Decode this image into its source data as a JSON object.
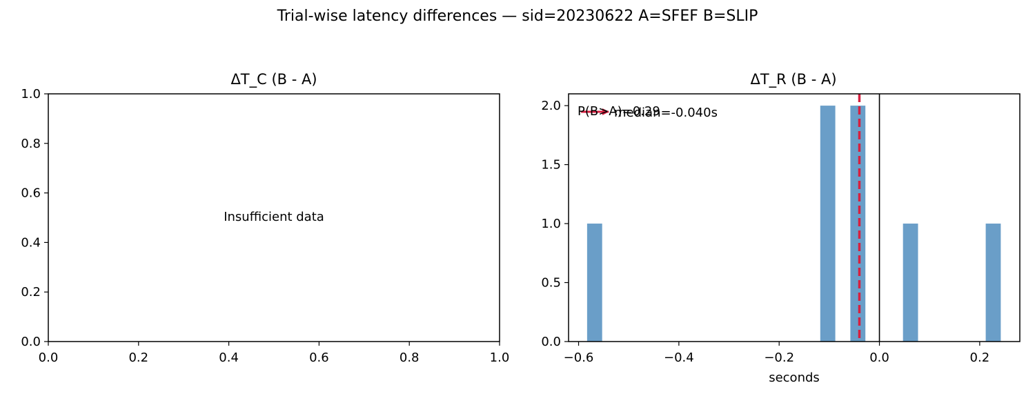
{
  "figure": {
    "suptitle": "Trial-wise latency differences — sid=20230622  A=SFEF  B=SLIP"
  },
  "colors": {
    "bar": "#6a9ec8",
    "median_line": "#d62040",
    "zero_line": "#000000",
    "axes": "#000000"
  },
  "chart_data": [
    {
      "type": "bar",
      "title": "ΔT_C (B - A)",
      "xlabel": "",
      "ylabel": "",
      "xlim": [
        0.0,
        1.0
      ],
      "ylim": [
        0.0,
        1.0
      ],
      "xticks": [
        "0.0",
        "0.2",
        "0.4",
        "0.6",
        "0.8",
        "1.0"
      ],
      "yticks": [
        "0.0",
        "0.2",
        "0.4",
        "0.6",
        "0.8",
        "1.0"
      ],
      "message": "Insufficient data",
      "bars": []
    },
    {
      "type": "bar",
      "title": "ΔT_R (B - A)",
      "xlabel": "seconds",
      "ylabel": "",
      "xlim": [
        -0.62,
        0.28
      ],
      "ylim": [
        0.0,
        2.1
      ],
      "xticks": [
        "−0.6",
        "−0.4",
        "−0.2",
        "0.0",
        "0.2"
      ],
      "yticks": [
        "0.0",
        "0.5",
        "1.0",
        "1.5",
        "2.0"
      ],
      "bars": [
        {
          "x0": -0.583,
          "x1": -0.553,
          "count": 1
        },
        {
          "x0": -0.118,
          "x1": -0.088,
          "count": 2
        },
        {
          "x0": -0.058,
          "x1": -0.028,
          "count": 2
        },
        {
          "x0": 0.047,
          "x1": 0.077,
          "count": 1
        },
        {
          "x0": 0.212,
          "x1": 0.242,
          "count": 1
        }
      ],
      "zero_line": 0.0,
      "median": -0.04,
      "legend": {
        "median_label": "median=-0.040s",
        "prob_label": "P(B>A)=0.29"
      }
    }
  ]
}
